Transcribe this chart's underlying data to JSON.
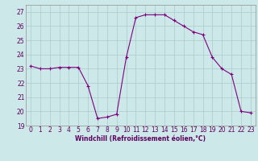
{
  "x": [
    0,
    1,
    2,
    3,
    4,
    5,
    6,
    7,
    8,
    9,
    10,
    11,
    12,
    13,
    14,
    15,
    16,
    17,
    18,
    19,
    20,
    21,
    22,
    23
  ],
  "y": [
    23.2,
    23.0,
    23.0,
    23.1,
    23.1,
    23.1,
    21.8,
    19.5,
    19.6,
    19.8,
    23.8,
    26.6,
    26.8,
    26.8,
    26.8,
    26.4,
    26.0,
    25.6,
    25.4,
    23.8,
    23.0,
    22.6,
    20.0,
    19.9
  ],
  "line_color": "#800080",
  "marker_color": "#800080",
  "bg_color": "#cce8e8",
  "grid_color": "#aacccc",
  "xlabel": "Windchill (Refroidissement éolien,°C)",
  "ylim": [
    19,
    27.5
  ],
  "xlim": [
    -0.5,
    23.5
  ],
  "yticks": [
    19,
    20,
    21,
    22,
    23,
    24,
    25,
    26,
    27
  ],
  "xticks": [
    0,
    1,
    2,
    3,
    4,
    5,
    6,
    7,
    8,
    9,
    10,
    11,
    12,
    13,
    14,
    15,
    16,
    17,
    18,
    19,
    20,
    21,
    22,
    23
  ],
  "label_fontsize": 5.5,
  "tick_fontsize": 5.5,
  "tick_color": "#600060",
  "line_width": 0.8,
  "marker_size": 3
}
